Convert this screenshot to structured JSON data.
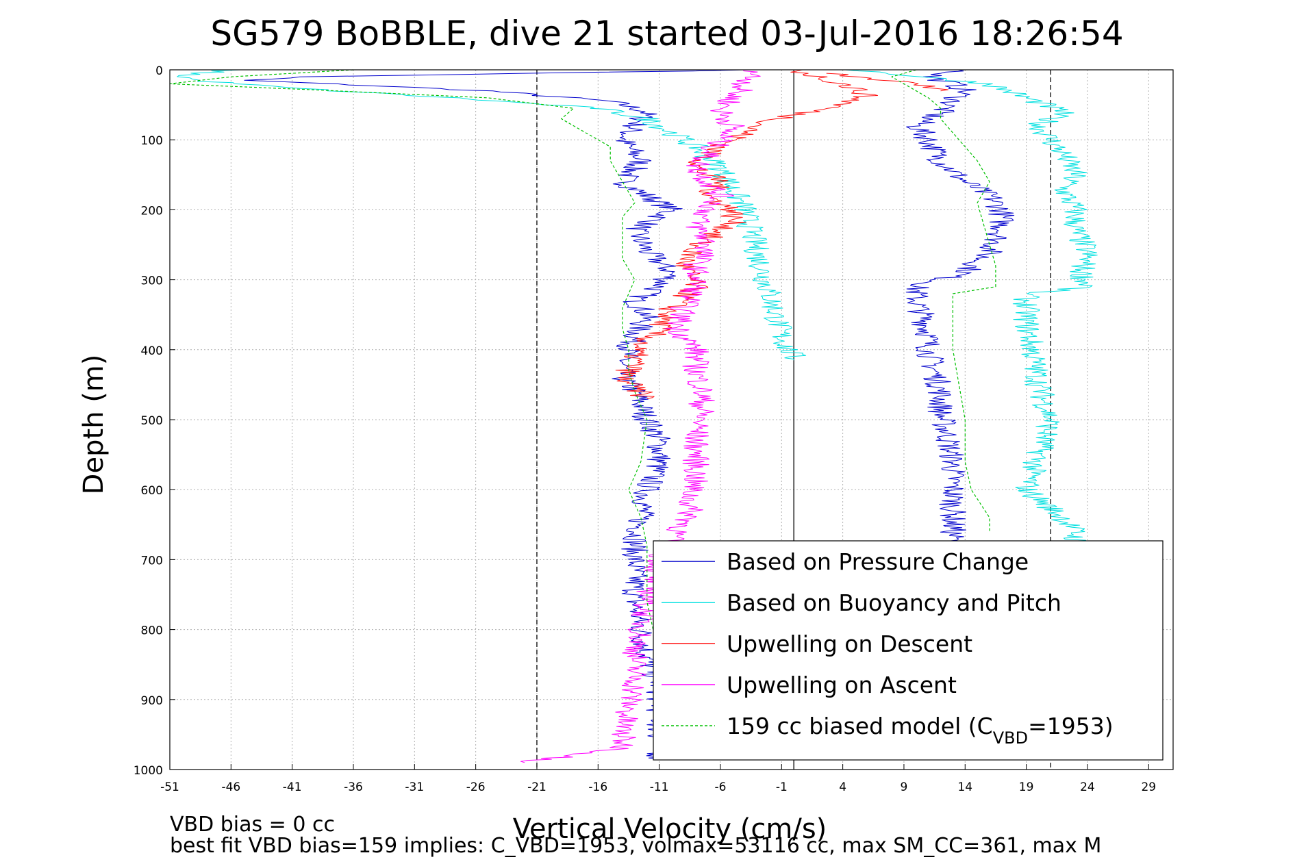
{
  "chart_data": {
    "type": "line",
    "title": "SG579 BoBBLE, dive 21 started 03-Jul-2016 18:26:54",
    "xlabel": "Vertical Velocity (cm/s)",
    "ylabel": "Depth (m)",
    "xlim": [
      -51,
      31
    ],
    "ylim": [
      0,
      1000
    ],
    "y_reversed": true,
    "grid": true,
    "xticks": [
      -51,
      -46,
      -41,
      -36,
      -31,
      -26,
      -21,
      -16,
      -11,
      -6,
      -1,
      4,
      9,
      14,
      19,
      24,
      29
    ],
    "yticks": [
      0,
      100,
      200,
      300,
      400,
      500,
      600,
      700,
      800,
      900,
      1000
    ],
    "reference_lines": [
      {
        "x": -21,
        "style": "dashed",
        "color": "#000000"
      },
      {
        "x": 0,
        "style": "solid",
        "color": "#000000"
      },
      {
        "x": 21,
        "style": "dashed",
        "color": "#000000"
      }
    ],
    "legend_position": "lower-right",
    "series": [
      {
        "name": "Based on Pressure Change",
        "color": "#0000cc",
        "style": "solid",
        "segments": [
          {
            "depth": [
              0,
              10,
              15,
              20,
              30,
              45,
              60,
              80,
              100,
              130,
              160,
              180,
              200,
              230,
              260,
              290,
              310,
              330,
              350,
              380,
              400,
              420,
              440,
              460,
              480,
              500,
              530,
              560,
              600,
              640,
              680,
              720,
              760,
              800,
              840,
              880,
              920,
              960,
              985
            ],
            "x": [
              -3,
              -40,
              -45,
              -38,
              -25,
              -15,
              -12,
              -13,
              -14,
              -12.5,
              -14,
              -12,
              -10,
              -13,
              -12,
              -10,
              -11,
              -13,
              -12,
              -13,
              -13.5,
              -14,
              -14,
              -13,
              -12.5,
              -12,
              -11,
              -11,
              -12,
              -12.5,
              -13,
              -13,
              -13,
              -12.5,
              -12,
              -11,
              -11,
              -11,
              -11
            ]
          },
          {
            "depth": [
              0,
              10,
              20,
              30,
              45,
              60,
              80,
              100,
              130,
              160,
              180,
              200,
              230,
              260,
              290,
              310,
              330,
              350,
              380,
              400,
              430,
              460,
              490,
              520,
              560,
              600,
              640,
              680,
              720,
              760,
              800,
              850,
              900,
              950,
              985
            ],
            "x": [
              14,
              11,
              13,
              14,
              13,
              12,
              10,
              11,
              12,
              14,
              16,
              17,
              17,
              16,
              14,
              10,
              10,
              10.5,
              11,
              11,
              11.5,
              12,
              12,
              12.5,
              13,
              13,
              13,
              13,
              13,
              13,
              13,
              13,
              12.5,
              12,
              12
            ]
          }
        ]
      },
      {
        "name": "Based on Buoyancy and Pitch",
        "color": "#00e0e0",
        "style": "solid",
        "segments": [
          {
            "depth": [
              0,
              8,
              15,
              25,
              40,
              55,
              70,
              90,
              110,
              140,
              170,
              200,
              230,
              260,
              290,
              320,
              350,
              380,
              400,
              410,
              415
            ],
            "x": [
              -46,
              -50,
              -49,
              -42,
              -28,
              -16,
              -12,
              -10,
              -8,
              -6,
              -5,
              -4,
              -3.5,
              -3,
              -2.5,
              -2,
              -1.5,
              -1,
              -0.5,
              0,
              0
            ]
          },
          {
            "depth": [
              0,
              20,
              40,
              60,
              80,
              100,
              120,
              150,
              170,
              200,
              230,
              260,
              290,
              310,
              320,
              360,
              400,
              450,
              500,
              550,
              600,
              640,
              660,
              680,
              720,
              760,
              800,
              850,
              900,
              950,
              985
            ],
            "x": [
              5,
              16,
              19,
              22,
              20,
              21,
              22,
              23,
              22,
              23,
              23,
              24,
              23.5,
              24,
              19,
              19,
              19.5,
              20,
              21,
              20,
              19,
              22,
              23,
              23,
              23,
              23,
              23,
              23,
              24,
              26,
              28
            ]
          }
        ]
      },
      {
        "name": "Upwelling on Descent",
        "color": "#ff1010",
        "style": "solid",
        "segments": [
          {
            "depth": [
              0,
              10,
              20,
              35,
              50,
              65,
              80,
              100,
              120,
              140,
              160,
              180,
              200,
              220,
              250,
              280,
              310,
              340,
              370,
              400,
              420,
              440,
              470
            ],
            "x": [
              0,
              2,
              4,
              6,
              4,
              0,
              -3,
              -5,
              -7,
              -8,
              -6,
              -7,
              -5,
              -5,
              -8,
              -9,
              -8,
              -10,
              -11,
              -13,
              -13,
              -14,
              -12
            ]
          },
          {
            "depth": [
              5,
              12,
              20,
              30
            ],
            "x": [
              3,
              6,
              10,
              12
            ]
          }
        ]
      },
      {
        "name": "Upwelling on Ascent",
        "color": "#ff00ff",
        "style": "solid",
        "segments": [
          {
            "depth": [
              0,
              20,
              40,
              60,
              80,
              100,
              120,
              140,
              160,
              180,
              200,
              220,
              250,
              280,
              310,
              340,
              370,
              400,
              430,
              460,
              490,
              520,
              550,
              580,
              610,
              640,
              670,
              700,
              730,
              760,
              800,
              840,
              880,
              910,
              940,
              970,
              990
            ],
            "x": [
              -3,
              -4,
              -5,
              -6,
              -5,
              -6,
              -7,
              -8,
              -7,
              -6,
              -7,
              -8,
              -7,
              -8,
              -8,
              -9,
              -9.5,
              -8,
              -8,
              -7.5,
              -7.5,
              -8,
              -8,
              -8,
              -8.5,
              -8.5,
              -10,
              -11,
              -11.5,
              -12,
              -12.5,
              -13,
              -13,
              -13.5,
              -14,
              -14,
              -22
            ]
          }
        ]
      },
      {
        "name": "159 cc biased model (C_VBD=1953)",
        "color": "#00c000",
        "style": "dashed",
        "segments": [
          {
            "depth": [
              0,
              10,
              20,
              28,
              40,
              55,
              70,
              90,
              110,
              130,
              160,
              190,
              210,
              240,
              270,
              300,
              320,
              340,
              370,
              400,
              430,
              460,
              500,
              560,
              600,
              640,
              680,
              720,
              760,
              800,
              850,
              900
            ],
            "x": [
              -36,
              -46,
              -51,
              -40,
              -25,
              -18,
              -19,
              -17,
              -15,
              -15,
              -14,
              -13,
              -14,
              -14,
              -14,
              -13,
              -13.5,
              -14,
              -14,
              -13.5,
              -13.5,
              -13,
              -12,
              -12.5,
              -13.5,
              -12.5,
              -12,
              -12,
              -12,
              -11.5,
              -11,
              -11
            ]
          },
          {
            "depth": [
              0,
              10,
              20,
              30,
              40,
              55,
              70,
              90,
              110,
              130,
              160,
              190,
              220,
              250,
              280,
              300,
              310,
              320,
              360,
              400,
              450,
              500,
              560,
              600,
              640,
              660
            ],
            "x": [
              10,
              8,
              9,
              10,
              11,
              12,
              12,
              13,
              14,
              15,
              16,
              15,
              15.5,
              16,
              16.5,
              16.5,
              16.5,
              13,
              13,
              13,
              13.5,
              14,
              14,
              14.5,
              16,
              16
            ]
          }
        ]
      }
    ],
    "legend_sub_label": "VBD",
    "legend_last_prefix": "159 cc biased model (C",
    "legend_last_suffix": "=1953)"
  },
  "footer": {
    "line1": "VBD bias = 0 cc",
    "line2": "best fit VBD bias=159 implies: C_VBD=1953, volmax=53116 cc, max SM_CC=361, max M"
  }
}
